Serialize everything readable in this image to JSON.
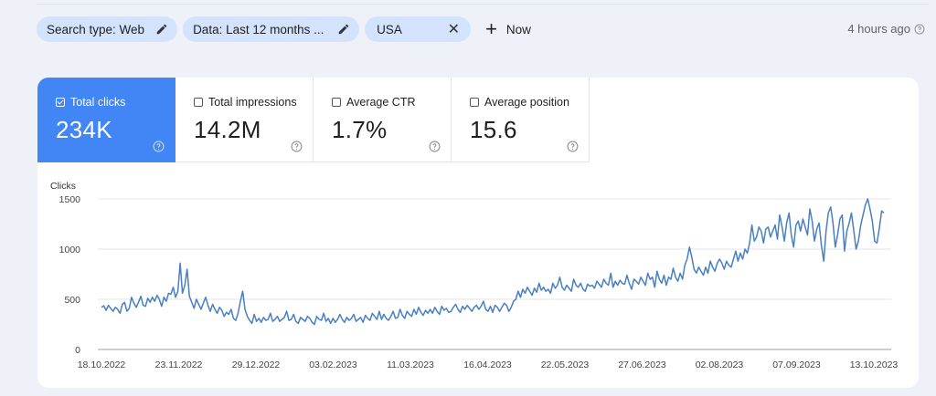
{
  "filters": {
    "search_type": "Search type: Web",
    "date": "Data: Last 12 months ...",
    "country": "USA",
    "new_label": "Now"
  },
  "updated": "4 hours ago",
  "metrics": [
    {
      "label": "Total clicks",
      "value": "234K",
      "checked": true
    },
    {
      "label": "Total impressions",
      "value": "14.2M",
      "checked": false
    },
    {
      "label": "Average CTR",
      "value": "1.7%",
      "checked": false
    },
    {
      "label": "Average position",
      "value": "15.6",
      "checked": false
    }
  ],
  "colors": {
    "accent": "#4285f4",
    "series": "#4a7fc1",
    "chip": "#d3e3fd"
  },
  "chart_data": {
    "type": "line",
    "ylabel": "Clicks",
    "ylim": [
      0,
      1500
    ],
    "yticks": [
      "1500",
      "1000",
      "500",
      "0"
    ],
    "xticks": [
      "18.10.2022",
      "23.11.2022",
      "29.12.2022",
      "03.02.2023",
      "11.03.2023",
      "16.04.2023",
      "22.05.2023",
      "27.06.2023",
      "02.08.2023",
      "07.09.2023",
      "13.10.2023"
    ],
    "grid": true,
    "series": [
      {
        "color": "#4a7fc1",
        "x_start": "18.10.2022",
        "x_end": "13.10.2023",
        "values": [
          420,
          435,
          390,
          440,
          410,
          380,
          420,
          400,
          360,
          450,
          470,
          380,
          410,
          520,
          460,
          420,
          470,
          530,
          440,
          430,
          510,
          470,
          520,
          480,
          540,
          500,
          430,
          520,
          480,
          560,
          550,
          620,
          520,
          580,
          860,
          560,
          640,
          800,
          530,
          470,
          410,
          500,
          450,
          400,
          460,
          520,
          440,
          380,
          450,
          400,
          360,
          420,
          390,
          330,
          370,
          350,
          400,
          310,
          290,
          360,
          480,
          580,
          400,
          330,
          290,
          260,
          350,
          280,
          310,
          270,
          320,
          290,
          300,
          360,
          280,
          300,
          330,
          280,
          300,
          320,
          380,
          290,
          300,
          350,
          280,
          260,
          320,
          300,
          280,
          330,
          310,
          270,
          250,
          330,
          300,
          290,
          360,
          280,
          310,
          260,
          310,
          270,
          300,
          350,
          300,
          270,
          320,
          290,
          310,
          350,
          280,
          300,
          320,
          270,
          340,
          310,
          290,
          360,
          330,
          300,
          380,
          300,
          350,
          310,
          290,
          330,
          380,
          310,
          320,
          400,
          340,
          310,
          380,
          350,
          330,
          400,
          350,
          420,
          370,
          340,
          390,
          360,
          400,
          360,
          420,
          380,
          350,
          430,
          390,
          410,
          370,
          380,
          420,
          450,
          400,
          370,
          430,
          400,
          440,
          410,
          380,
          420,
          440,
          400,
          430,
          480,
          400,
          380,
          430,
          370,
          440,
          420,
          380,
          420,
          460,
          440,
          380,
          420,
          480,
          500,
          580,
          520,
          600,
          560,
          620,
          580,
          540,
          610,
          570,
          660,
          590,
          620,
          580,
          600,
          560,
          660,
          610,
          640,
          720,
          620,
          590,
          640,
          610,
          580,
          700,
          640,
          620,
          660,
          600,
          580,
          650,
          630,
          640,
          610,
          680,
          650,
          620,
          700,
          660,
          640,
          760,
          620,
          680,
          640,
          690,
          660,
          650,
          740,
          660,
          600,
          700,
          680,
          650,
          720,
          680,
          640,
          760,
          700,
          720,
          620,
          780,
          700,
          660,
          740,
          640,
          720,
          700,
          810,
          720,
          680,
          760,
          700,
          840,
          900,
          1020,
          920,
          800,
          760,
          820,
          780,
          740,
          820,
          760,
          880,
          820,
          780,
          860,
          900,
          860,
          800,
          880,
          840,
          820,
          900,
          980,
          880,
          960,
          900,
          1000,
          960,
          1060,
          1240,
          1080,
          1120,
          1220,
          1180,
          1060,
          1200,
          1220,
          1120,
          1180,
          1240,
          1100,
          1340,
          1220,
          1080,
          1260,
          1360,
          1140,
          1020,
          1240,
          1280,
          1180,
          1300,
          1220,
          1140,
          1400,
          1280,
          1080,
          1200,
          1260,
          1040,
          880,
          1180,
          1360,
          1420,
          1260,
          1020,
          1140,
          1300,
          1340,
          980,
          1180,
          1260,
          1360,
          1180,
          1000,
          1080,
          1240,
          1340,
          1440,
          1500,
          1400,
          1280,
          1080,
          1060,
          1200,
          1380,
          1360
        ]
      }
    ]
  }
}
